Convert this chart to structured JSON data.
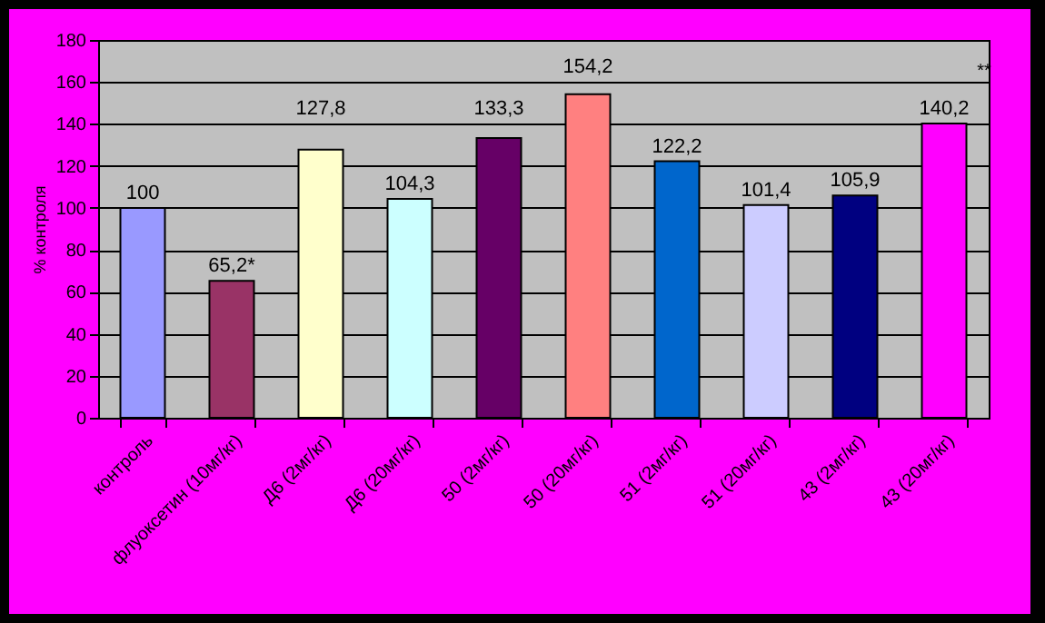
{
  "chart_data": {
    "type": "bar",
    "ylabel": "% контроля",
    "categories": [
      "контроль",
      "флуоксетин (10мг/кг)",
      "Д6 (2мг/кг)",
      "Д6 (20мг/кг)",
      "50 (2мг/кг)",
      "50 (20мг/кг)",
      "51 (2мг/кг)",
      "51 (20мг/кг)",
      "43 (2мг/кг)",
      "43 (20мг/кг)"
    ],
    "values": [
      100,
      65.2,
      127.8,
      104.3,
      133.3,
      154.2,
      122.2,
      101.4,
      105.9,
      140.2
    ],
    "value_labels": [
      "100",
      "65,2*",
      "127,8",
      "104,3",
      "133,3",
      "154,2",
      "122,2",
      "101,4",
      "105,9",
      "140,2"
    ],
    "colors": [
      "#9999ff",
      "#993366",
      "#ffffcc",
      "#ccffff",
      "#660066",
      "#ff8080",
      "#0066cc",
      "#ccccff",
      "#000080",
      "#ff00ff"
    ],
    "annotations": [
      "**"
    ],
    "ylim": [
      0,
      180
    ],
    "yticks": [
      0,
      20,
      40,
      60,
      80,
      100,
      120,
      140,
      160,
      180
    ],
    "grid": "y"
  }
}
